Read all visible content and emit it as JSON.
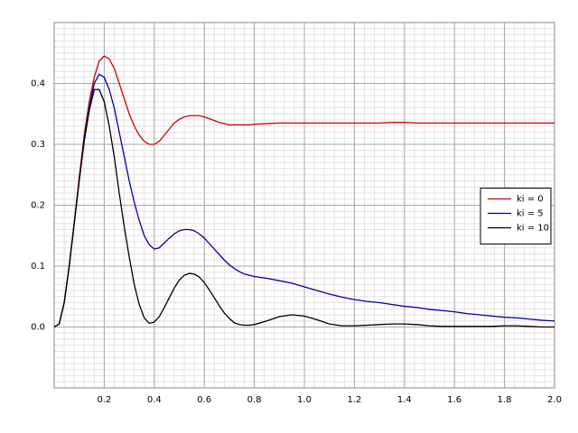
{
  "chart_data": {
    "type": "line",
    "x": [
      0,
      0.02,
      0.04,
      0.06,
      0.08,
      0.1,
      0.12,
      0.14,
      0.16,
      0.18,
      0.2,
      0.22,
      0.24,
      0.26,
      0.28,
      0.3,
      0.32,
      0.34,
      0.36,
      0.38,
      0.4,
      0.42,
      0.44,
      0.46,
      0.48,
      0.5,
      0.52,
      0.54,
      0.56,
      0.58,
      0.6,
      0.62,
      0.64,
      0.66,
      0.68,
      0.7,
      0.72,
      0.74,
      0.76,
      0.78,
      0.8,
      0.85,
      0.9,
      0.95,
      1.0,
      1.05,
      1.1,
      1.15,
      1.2,
      1.25,
      1.3,
      1.35,
      1.4,
      1.45,
      1.5,
      1.55,
      1.6,
      1.65,
      1.7,
      1.75,
      1.8,
      1.85,
      1.9,
      1.95,
      2.0
    ],
    "series": [
      {
        "name": "ki = 0",
        "color": "#cc0000",
        "values": [
          0,
          0.005,
          0.04,
          0.1,
          0.17,
          0.245,
          0.315,
          0.37,
          0.41,
          0.437,
          0.445,
          0.44,
          0.425,
          0.4,
          0.375,
          0.35,
          0.33,
          0.315,
          0.305,
          0.3,
          0.3,
          0.305,
          0.315,
          0.325,
          0.335,
          0.341,
          0.345,
          0.347,
          0.347,
          0.347,
          0.345,
          0.342,
          0.339,
          0.336,
          0.334,
          0.332,
          0.332,
          0.332,
          0.332,
          0.332,
          0.333,
          0.334,
          0.335,
          0.335,
          0.335,
          0.335,
          0.335,
          0.335,
          0.335,
          0.335,
          0.335,
          0.336,
          0.336,
          0.335,
          0.335,
          0.335,
          0.335,
          0.335,
          0.335,
          0.335,
          0.335,
          0.335,
          0.335,
          0.335,
          0.335
        ]
      },
      {
        "name": "ki = 5",
        "color": "#0000aa",
        "values": [
          0,
          0.005,
          0.04,
          0.1,
          0.17,
          0.24,
          0.31,
          0.36,
          0.4,
          0.415,
          0.41,
          0.39,
          0.36,
          0.32,
          0.28,
          0.24,
          0.205,
          0.175,
          0.15,
          0.135,
          0.128,
          0.13,
          0.138,
          0.146,
          0.153,
          0.158,
          0.16,
          0.16,
          0.158,
          0.153,
          0.146,
          0.137,
          0.128,
          0.119,
          0.11,
          0.102,
          0.096,
          0.091,
          0.087,
          0.085,
          0.083,
          0.08,
          0.076,
          0.072,
          0.066,
          0.06,
          0.054,
          0.049,
          0.045,
          0.042,
          0.04,
          0.037,
          0.034,
          0.032,
          0.029,
          0.027,
          0.025,
          0.022,
          0.02,
          0.018,
          0.016,
          0.015,
          0.013,
          0.011,
          0.01
        ]
      },
      {
        "name": "ki = 10",
        "color": "#000000",
        "values": [
          0,
          0.005,
          0.04,
          0.1,
          0.17,
          0.24,
          0.305,
          0.355,
          0.39,
          0.39,
          0.37,
          0.33,
          0.28,
          0.22,
          0.165,
          0.115,
          0.07,
          0.037,
          0.015,
          0.006,
          0.008,
          0.017,
          0.032,
          0.048,
          0.064,
          0.077,
          0.085,
          0.088,
          0.087,
          0.082,
          0.073,
          0.061,
          0.048,
          0.035,
          0.023,
          0.014,
          0.007,
          0.004,
          0.003,
          0.003,
          0.004,
          0.01,
          0.017,
          0.02,
          0.018,
          0.012,
          0.005,
          0.002,
          0.002,
          0.003,
          0.004,
          0.005,
          0.005,
          0.004,
          0.002,
          0.001,
          0.001,
          0.001,
          0.001,
          0.001,
          0.002,
          0.002,
          0.001,
          0,
          0
        ]
      }
    ],
    "xlim": [
      0,
      2.0
    ],
    "ylim": [
      -0.1,
      0.5
    ],
    "xticks": [
      0.2,
      0.4,
      0.6,
      0.8,
      {
        "value": 1,
        "label": "1.0"
      },
      1.2,
      1.4,
      1.6,
      1.8,
      {
        "value": 2,
        "label": "2.0"
      }
    ],
    "yticks": [
      {
        "value": 0,
        "label": "0.0"
      },
      0.1,
      0.2,
      0.3,
      0.4
    ],
    "grid": true,
    "minor_grid": true,
    "legend": "right"
  }
}
